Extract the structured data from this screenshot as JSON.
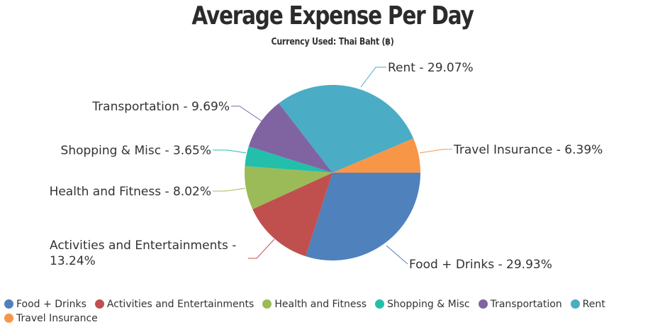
{
  "chart_data": {
    "type": "pie",
    "title": "Average Expense Per Day",
    "subtitle": "Currency Used: Thai Baht (฿)",
    "slices": [
      {
        "name": "Food + Drinks",
        "value": 29.93,
        "label": "Food + Drinks - 29.93%",
        "color": "#4f81bc"
      },
      {
        "name": "Activities and Entertainments",
        "value": 13.24,
        "label": "Activities and Entertainments - 13.24%",
        "color": "#c0504e"
      },
      {
        "name": "Health and Fitness",
        "value": 8.02,
        "label": "Health and Fitness - 8.02%",
        "color": "#9bbb58"
      },
      {
        "name": "Shopping & Misc",
        "value": 3.65,
        "label": "Shopping & Misc - 3.65%",
        "color": "#23bfaa"
      },
      {
        "name": "Transportation",
        "value": 9.69,
        "label": "Transportation - 9.69%",
        "color": "#8064a1"
      },
      {
        "name": "Rent",
        "value": 29.07,
        "label": "Rent - 29.07%",
        "color": "#4aacc5"
      },
      {
        "name": "Travel Insurance",
        "value": 6.39,
        "label": "Travel Insurance - 6.39%",
        "color": "#f79647"
      }
    ],
    "legend": "bottom"
  }
}
